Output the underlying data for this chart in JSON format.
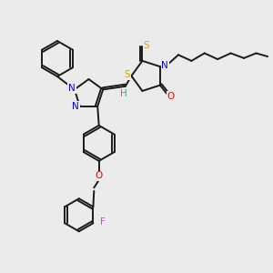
{
  "bg_color": "#ebebeb",
  "bond_color": "#1a1a1a",
  "atom_colors": {
    "N": "#0000ee",
    "S": "#ccaa00",
    "O": "#ee0000",
    "F": "#dd44cc",
    "H": "#449999",
    "C": "#1a1a1a"
  },
  "lw": 1.4,
  "fontsize": 7.5,
  "scale": 1.0
}
